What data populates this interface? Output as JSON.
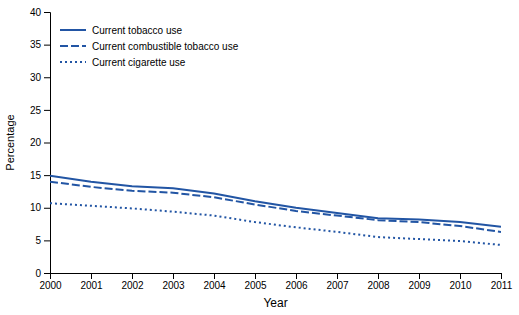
{
  "chart_data": {
    "type": "line",
    "xlabel": "Year",
    "ylabel": "Percentage",
    "x": [
      2000,
      2001,
      2002,
      2003,
      2004,
      2005,
      2006,
      2007,
      2008,
      2009,
      2010,
      2011
    ],
    "series": [
      {
        "name": "Current tobacco use",
        "color": "#2255A4",
        "line_style": "solid",
        "values": [
          14.9,
          14.0,
          13.3,
          13.0,
          12.2,
          11.0,
          10.0,
          9.2,
          8.4,
          8.2,
          7.8,
          7.1
        ]
      },
      {
        "name": "Current combustible tobacco use",
        "color": "#2255A4",
        "line_style": "dashed",
        "values": [
          14.0,
          13.2,
          12.6,
          12.3,
          11.6,
          10.5,
          9.5,
          8.8,
          8.1,
          7.8,
          7.2,
          6.3
        ]
      },
      {
        "name": "Current cigarette use",
        "color": "#2255A4",
        "line_style": "dotted",
        "values": [
          10.7,
          10.3,
          9.9,
          9.4,
          8.8,
          7.8,
          7.0,
          6.3,
          5.5,
          5.2,
          4.9,
          4.3
        ]
      }
    ],
    "xlim": [
      2000,
      2011
    ],
    "xticks": [
      2000,
      2001,
      2002,
      2003,
      2004,
      2005,
      2006,
      2007,
      2008,
      2009,
      2010,
      2011
    ],
    "ylim": [
      0,
      40
    ],
    "yticks": [
      0,
      5,
      10,
      15,
      20,
      25,
      30,
      35,
      40
    ],
    "legend": "upper left"
  }
}
